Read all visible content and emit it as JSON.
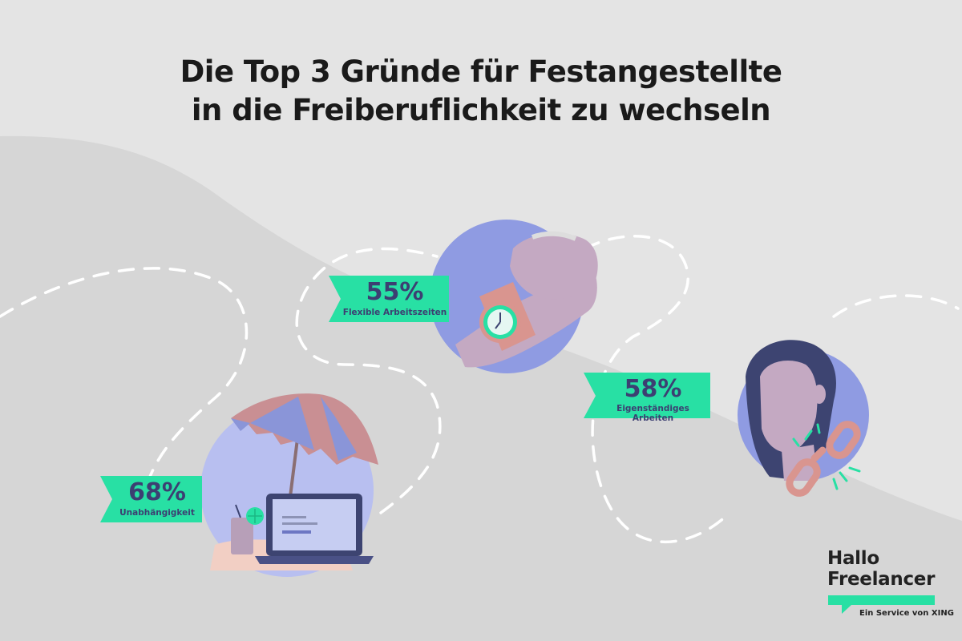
{
  "title": {
    "line1": "Die Top 3 Gründe für Festangestellte",
    "line2": "in die Freiberuflichkeit zu wechseln"
  },
  "reasons": [
    {
      "percent": "68%",
      "label": "Unabhängigkeit",
      "value": 68,
      "icon": "beach-laptop-icon"
    },
    {
      "percent": "55%",
      "label": "Flexible Arbeitszeiten",
      "value": 55,
      "icon": "wristwatch-icon"
    },
    {
      "percent": "58%",
      "label": "Eigenständiges Arbeiten",
      "value": 58,
      "icon": "woman-broken-chain-icon"
    }
  ],
  "logo": {
    "line1": "Hallo",
    "line2": "Freelancer",
    "tagline": "Ein Service von XING"
  },
  "colors": {
    "background": "#e4e4e4",
    "wave": "#d5d5d5",
    "accent": "#28e0a4",
    "text_dark": "#3c3f72",
    "circle": "#8f9be2"
  }
}
